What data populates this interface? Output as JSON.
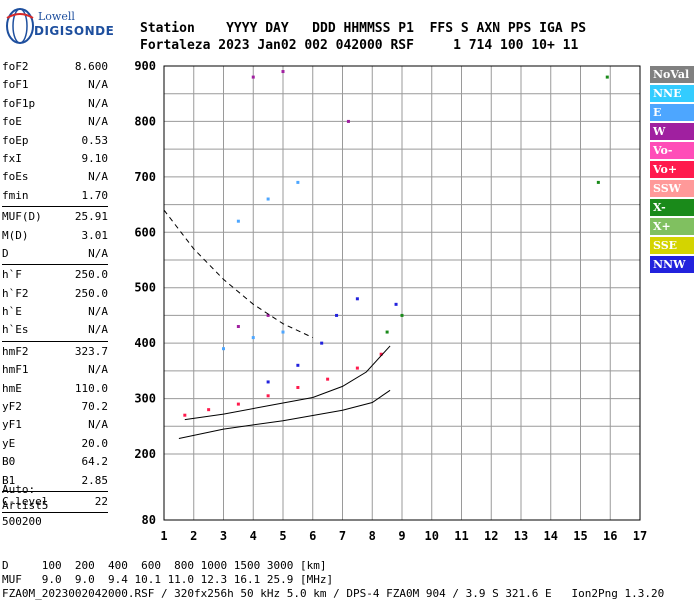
{
  "logo": {
    "line1": "Lowell",
    "line2": "DIGISONDE"
  },
  "header": {
    "row1": "Station    YYYY DAY   DDD HHMMSS P1  FFS S AXN PPS IGA PS",
    "row2": "Fortaleza 2023 Jan02 002 042000 RSF     1 714 100 10+ 11"
  },
  "params": {
    "group1": [
      {
        "k": "foF2",
        "v": "8.600"
      },
      {
        "k": "foF1",
        "v": "N/A"
      },
      {
        "k": "foF1p",
        "v": "N/A"
      },
      {
        "k": "foE",
        "v": "N/A"
      },
      {
        "k": "foEp",
        "v": "0.53"
      },
      {
        "k": "fxI",
        "v": "9.10"
      },
      {
        "k": "foEs",
        "v": "N/A"
      },
      {
        "k": "fmin",
        "v": "1.70"
      }
    ],
    "group2": [
      {
        "k": "MUF(D)",
        "v": "25.91"
      },
      {
        "k": "M(D)",
        "v": "3.01"
      },
      {
        "k": "D",
        "v": "N/A"
      }
    ],
    "group3": [
      {
        "k": "h`F",
        "v": "250.0"
      },
      {
        "k": "h`F2",
        "v": "250.0"
      },
      {
        "k": "h`E",
        "v": "N/A"
      },
      {
        "k": "h`Es",
        "v": "N/A"
      }
    ],
    "group4": [
      {
        "k": "hmF2",
        "v": "323.7"
      },
      {
        "k": "hmF1",
        "v": "N/A"
      },
      {
        "k": "hmE",
        "v": "110.0"
      },
      {
        "k": "yF2",
        "v": "70.2"
      },
      {
        "k": "yF1",
        "v": "N/A"
      },
      {
        "k": "yE",
        "v": "20.0"
      },
      {
        "k": "B0",
        "v": "64.2"
      },
      {
        "k": "B1",
        "v": "2.85"
      }
    ],
    "group5": [
      {
        "k": "C-level",
        "v": "22"
      }
    ]
  },
  "auto": {
    "line1": "Auto:",
    "line2": "Artist5",
    "line3": "500200"
  },
  "footer": {
    "row1": "D     100  200  400  600  800 1000 1500 3000 [km]",
    "row2": "MUF   9.0  9.0  9.4 10.1 11.0 12.3 16.1 25.9 [MHz]",
    "row3": "FZA0M_2023002042000.RSF / 320fx256h 50 kHz 5.0 km / DPS-4 FZA0M 904 / 3.9 S 321.6 E   Ion2Png 1.3.20"
  },
  "legend": [
    {
      "label": "NoVal",
      "color": "#808080"
    },
    {
      "label": "NNE",
      "color": "#33ccff"
    },
    {
      "label": "E",
      "color": "#4da6ff"
    },
    {
      "label": "W",
      "color": "#a020a0"
    },
    {
      "label": "Vo-",
      "color": "#ff4db8"
    },
    {
      "label": "Vo+",
      "color": "#ff1a4d"
    },
    {
      "label": "SSW",
      "color": "#ff9999"
    },
    {
      "label": "X-",
      "color": "#1a8a1a"
    },
    {
      "label": "X+",
      "color": "#80c060"
    },
    {
      "label": "SSE",
      "color": "#d4d400"
    },
    {
      "label": "NNW",
      "color": "#2222dd"
    }
  ],
  "chart_data": {
    "type": "scatter",
    "title": "",
    "xlabel": "",
    "ylabel": "",
    "xlim": [
      1,
      17
    ],
    "ylim": [
      80,
      900
    ],
    "x_ticks": [
      1,
      2,
      3,
      4,
      5,
      6,
      7,
      8,
      9,
      10,
      11,
      12,
      13,
      14,
      15,
      16,
      17
    ],
    "y_ticks": [
      80,
      200,
      300,
      400,
      500,
      600,
      700,
      800,
      900
    ],
    "grid": true,
    "legend_placement": "right",
    "series": [
      {
        "name": "Vo+",
        "values": [
          {
            "x": 1.7,
            "y": 270
          },
          {
            "x": 2.5,
            "y": 280
          },
          {
            "x": 3.5,
            "y": 290
          },
          {
            "x": 4.5,
            "y": 305
          },
          {
            "x": 5.5,
            "y": 320
          },
          {
            "x": 6.5,
            "y": 335
          },
          {
            "x": 7.5,
            "y": 355
          },
          {
            "x": 8.3,
            "y": 380
          }
        ]
      },
      {
        "name": "NNW",
        "values": [
          {
            "x": 4.5,
            "y": 330
          },
          {
            "x": 5.5,
            "y": 360
          },
          {
            "x": 6.3,
            "y": 400
          },
          {
            "x": 6.8,
            "y": 450
          },
          {
            "x": 7.5,
            "y": 480
          },
          {
            "x": 8.8,
            "y": 470
          }
        ]
      },
      {
        "name": "E",
        "values": [
          {
            "x": 3.0,
            "y": 390
          },
          {
            "x": 4.0,
            "y": 410
          },
          {
            "x": 5.0,
            "y": 420
          },
          {
            "x": 3.5,
            "y": 620
          },
          {
            "x": 4.5,
            "y": 660
          },
          {
            "x": 5.5,
            "y": 690
          }
        ]
      },
      {
        "name": "W",
        "values": [
          {
            "x": 3.5,
            "y": 430
          },
          {
            "x": 4.5,
            "y": 450
          },
          {
            "x": 4.0,
            "y": 880
          },
          {
            "x": 5.0,
            "y": 890
          },
          {
            "x": 7.2,
            "y": 800
          }
        ]
      },
      {
        "name": "X-",
        "values": [
          {
            "x": 8.5,
            "y": 420
          },
          {
            "x": 9.0,
            "y": 450
          },
          {
            "x": 15.6,
            "y": 690
          },
          {
            "x": 15.9,
            "y": 880
          }
        ]
      }
    ],
    "curves": [
      {
        "name": "profile",
        "values": [
          {
            "x": 1.7,
            "y": 262
          },
          {
            "x": 3,
            "y": 272
          },
          {
            "x": 4.5,
            "y": 287
          },
          {
            "x": 6,
            "y": 302
          },
          {
            "x": 7,
            "y": 322
          },
          {
            "x": 7.8,
            "y": 348
          },
          {
            "x": 8.6,
            "y": 395
          }
        ]
      },
      {
        "name": "ordinary-trace",
        "values": [
          {
            "x": 1.5,
            "y": 228
          },
          {
            "x": 3,
            "y": 245
          },
          {
            "x": 5,
            "y": 260
          },
          {
            "x": 7,
            "y": 279
          },
          {
            "x": 8,
            "y": 293
          },
          {
            "x": 8.6,
            "y": 315
          }
        ]
      },
      {
        "name": "dashed",
        "values": [
          {
            "x": 1,
            "y": 640
          },
          {
            "x": 2,
            "y": 570
          },
          {
            "x": 3,
            "y": 515
          },
          {
            "x": 4,
            "y": 470
          },
          {
            "x": 5,
            "y": 435
          },
          {
            "x": 6,
            "y": 410
          }
        ]
      }
    ]
  }
}
